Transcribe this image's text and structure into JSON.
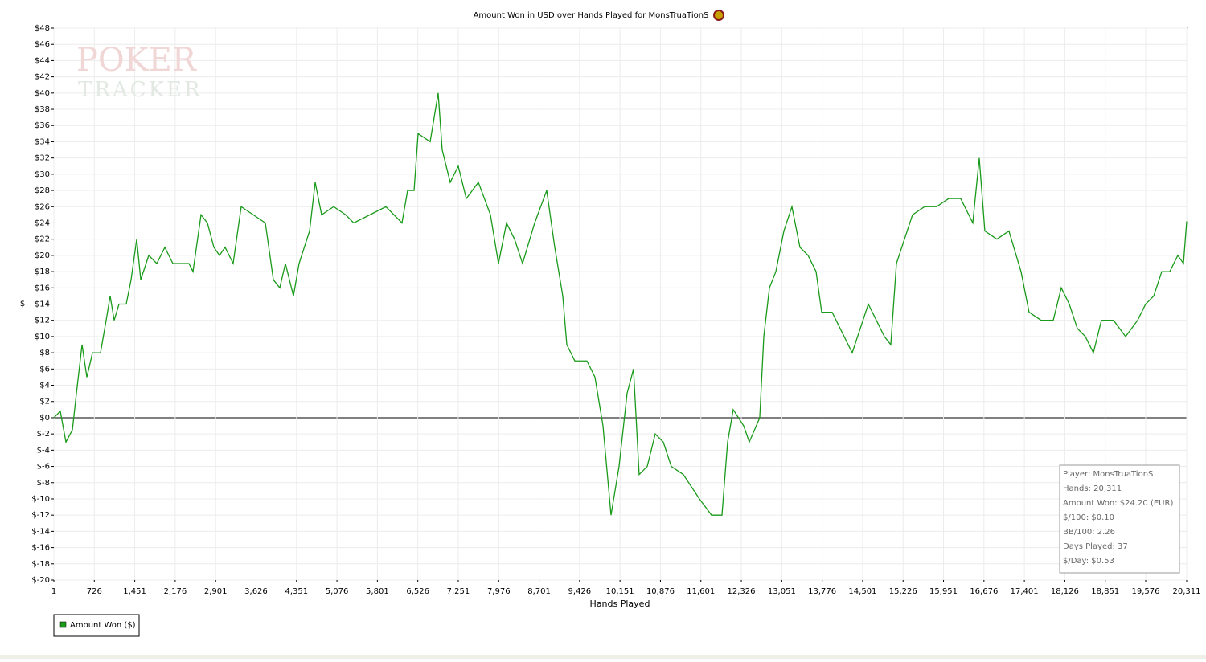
{
  "chart_data": {
    "type": "line",
    "title": "Amount Won in USD over Hands Played for MonsTruaTionS",
    "xlabel": "Hands Played",
    "ylabel": "$",
    "watermark": [
      "POKER",
      "TRACKER"
    ],
    "grid": true,
    "xlim": [
      1,
      20311
    ],
    "ylim": [
      -20,
      48
    ],
    "xticks": [
      1,
      726,
      {
        "value": 1451,
        "label": "1,451"
      },
      {
        "value": 2176,
        "label": "2,176"
      },
      {
        "value": 2901,
        "label": "2,901"
      },
      {
        "value": 3626,
        "label": "3,626"
      },
      {
        "value": 4351,
        "label": "4,351"
      },
      {
        "value": 5076,
        "label": "5,076"
      },
      {
        "value": 5801,
        "label": "5,801"
      },
      {
        "value": 6526,
        "label": "6,526"
      },
      {
        "value": 7251,
        "label": "7,251"
      },
      {
        "value": 7976,
        "label": "7,976"
      },
      {
        "value": 8701,
        "label": "8,701"
      },
      {
        "value": 9426,
        "label": "9,426"
      },
      {
        "value": 10151,
        "label": "10,151"
      },
      {
        "value": 10876,
        "label": "10,876"
      },
      {
        "value": 11601,
        "label": "11,601"
      },
      {
        "value": 12326,
        "label": "12,326"
      },
      {
        "value": 13051,
        "label": "13,051"
      },
      {
        "value": 13776,
        "label": "13,776"
      },
      {
        "value": 14501,
        "label": "14,501"
      },
      {
        "value": 15226,
        "label": "15,226"
      },
      {
        "value": 15951,
        "label": "15,951"
      },
      {
        "value": 16676,
        "label": "16,676"
      },
      {
        "value": 17401,
        "label": "17,401"
      },
      {
        "value": 18126,
        "label": "18,126"
      },
      {
        "value": 18851,
        "label": "18,851"
      },
      {
        "value": 19576,
        "label": "19,576"
      },
      {
        "value": 20311,
        "label": "20,311"
      }
    ],
    "yticks": [
      {
        "value": -20,
        "label": "$-20"
      },
      {
        "value": -18,
        "label": "$-18"
      },
      {
        "value": -16,
        "label": "$-16"
      },
      {
        "value": -14,
        "label": "$-14"
      },
      {
        "value": -12,
        "label": "$-12"
      },
      {
        "value": -10,
        "label": "$-10"
      },
      {
        "value": -8,
        "label": "$-8"
      },
      {
        "value": -6,
        "label": "$-6"
      },
      {
        "value": -4,
        "label": "$-4"
      },
      {
        "value": -2,
        "label": "$-2"
      },
      {
        "value": 0,
        "label": "$0"
      },
      {
        "value": 2,
        "label": "$2"
      },
      {
        "value": 4,
        "label": "$4"
      },
      {
        "value": 6,
        "label": "$6"
      },
      {
        "value": 8,
        "label": "$8"
      },
      {
        "value": 10,
        "label": "$10"
      },
      {
        "value": 12,
        "label": "$12"
      },
      {
        "value": 14,
        "label": "$14"
      },
      {
        "value": 16,
        "label": "$16"
      },
      {
        "value": 18,
        "label": "$18"
      },
      {
        "value": 20,
        "label": "$20"
      },
      {
        "value": 22,
        "label": "$22"
      },
      {
        "value": 24,
        "label": "$24"
      },
      {
        "value": 26,
        "label": "$26"
      },
      {
        "value": 28,
        "label": "$28"
      },
      {
        "value": 30,
        "label": "$30"
      },
      {
        "value": 32,
        "label": "$32"
      },
      {
        "value": 34,
        "label": "$34"
      },
      {
        "value": 36,
        "label": "$36"
      },
      {
        "value": 38,
        "label": "$38"
      },
      {
        "value": 40,
        "label": "$40"
      },
      {
        "value": 42,
        "label": "$42"
      },
      {
        "value": 44,
        "label": "$44"
      },
      {
        "value": 46,
        "label": "$46"
      },
      {
        "value": 48,
        "label": "$48"
      }
    ],
    "x": [
      1,
      116,
      217,
      333,
      405,
      506,
      592,
      693,
      837,
      938,
      1010,
      1082,
      1169,
      1298,
      1385,
      1486,
      1558,
      1702,
      1846,
      1990,
      2134,
      2422,
      2495,
      2639,
      2754,
      2869,
      2970,
      3071,
      3215,
      3359,
      3576,
      3792,
      3936,
      4051,
      4152,
      4296,
      4397,
      4585,
      4686,
      4801,
      5017,
      5233,
      5377,
      5666,
      5954,
      6242,
      6343,
      6459,
      6531,
      6747,
      6819,
      6891,
      6963,
      7107,
      7251,
      7395,
      7612,
      7828,
      7972,
      8116,
      8260,
      8404,
      8621,
      8837,
      8981,
      9125,
      9197,
      9341,
      9558,
      9702,
      9846,
      9990,
      10134,
      10278,
      10393,
      10494,
      10639,
      10783,
      10927,
      11071,
      11287,
      11575,
      11792,
      11979,
      12080,
      12181,
      12368,
      12469,
      12656,
      12729,
      12830,
      12945,
      13089,
      13233,
      13377,
      13522,
      13666,
      13767,
      13954,
      14098,
      14314,
      14459,
      14603,
      14747,
      14891,
      15006,
      15107,
      15251,
      15395,
      15612,
      15828,
      16043,
      16259,
      16476,
      16592,
      16692,
      16908,
      17124,
      17341,
      17485,
      17701,
      17918,
      18062,
      18206,
      18350,
      18494,
      18638,
      18782,
      18999,
      19215,
      19431,
      19575,
      19720,
      19864,
      20008,
      20152,
      20253,
      20311
    ],
    "series": [
      {
        "name": "Amount Won ($)",
        "color": "#1a9a1a",
        "values": [
          0,
          0.8,
          -3,
          -1.5,
          3,
          9,
          5,
          8,
          8,
          12,
          15,
          12,
          14,
          14,
          17,
          22,
          17,
          20,
          19,
          21,
          19,
          19,
          18,
          25,
          24,
          21,
          20,
          21,
          19,
          26,
          25,
          24,
          17,
          16,
          19,
          15,
          19,
          23,
          29,
          25,
          26,
          25,
          24,
          25,
          26,
          24,
          28,
          28,
          35,
          34,
          37,
          40,
          33,
          29,
          31,
          27,
          29,
          25,
          19,
          24,
          22,
          19,
          24,
          28,
          21,
          15,
          9,
          7,
          7,
          5,
          -1,
          -12,
          -6,
          3,
          6,
          -7,
          -6,
          -2,
          -3,
          -6,
          -7,
          -10,
          -12,
          -12,
          -3,
          1,
          -1,
          -3,
          0,
          10,
          16,
          18,
          23,
          26,
          21,
          20,
          18,
          13,
          13,
          11,
          8,
          11,
          14,
          12,
          10,
          9,
          19,
          22,
          25,
          26,
          26,
          27,
          27,
          24,
          32,
          23,
          22,
          23,
          18,
          13,
          12,
          12,
          16,
          14,
          11,
          10,
          8,
          12,
          12,
          10,
          12,
          14,
          15,
          18,
          18,
          20,
          19,
          24.2
        ]
      }
    ],
    "stats": [
      "Player: MonsTruaTionS",
      "Hands: 20,311",
      "Amount Won: $24.20 (EUR)",
      "$/100: $0.10",
      "BB/100: 2.26",
      "Days Played: 37",
      "$/Day: $0.53"
    ]
  }
}
